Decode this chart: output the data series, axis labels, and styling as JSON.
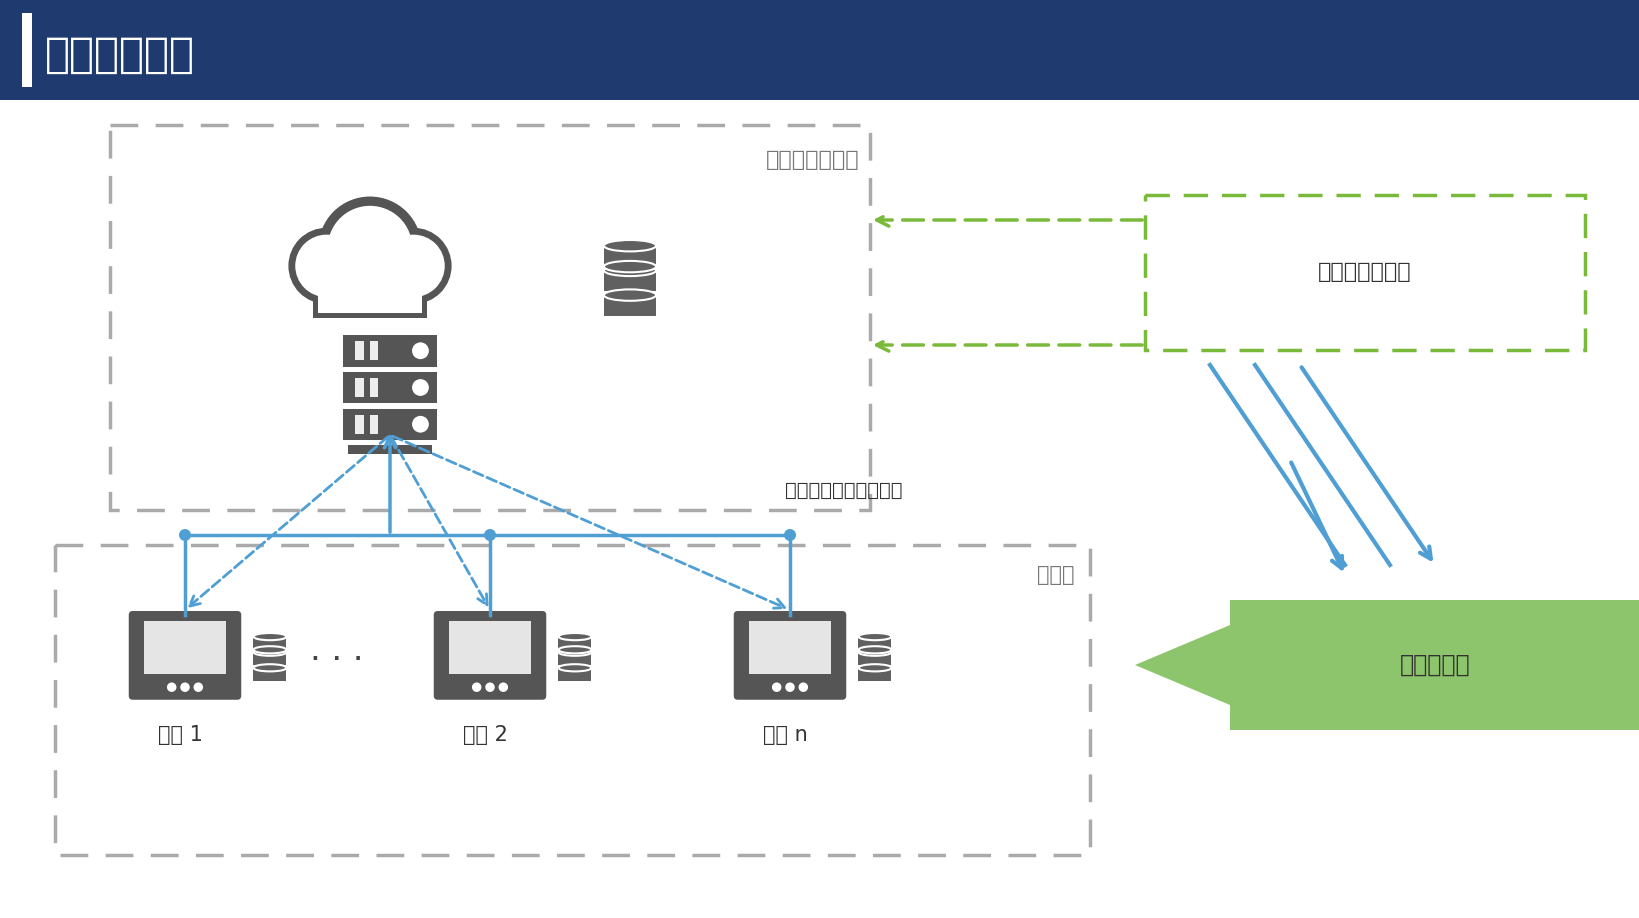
{
  "title": "边缘计算模式",
  "title_bg_color": "#1e3a6e",
  "title_text_color": "#ffffff",
  "bg_color": "#ffffff",
  "cloud_platform_label": "云端大数据平台",
  "edge_side_label": "边缘侧",
  "cloud_storage_label": "云端存储、计算",
  "edge_storage_label": "存储、计算",
  "arrow_label": "边缘节点上报采集数据",
  "terminals": [
    "终端 1",
    "终端 2",
    "终端 n"
  ],
  "dots_label": "···",
  "gray_dash_color": "#aaaaaa",
  "green_dash_color": "#7aba3a",
  "green_solid_color": "#8dc56c",
  "blue_color": "#4f9fd4",
  "icon_color": "#555555",
  "text_color": "#333333",
  "header_accent_color": "#ffffff"
}
